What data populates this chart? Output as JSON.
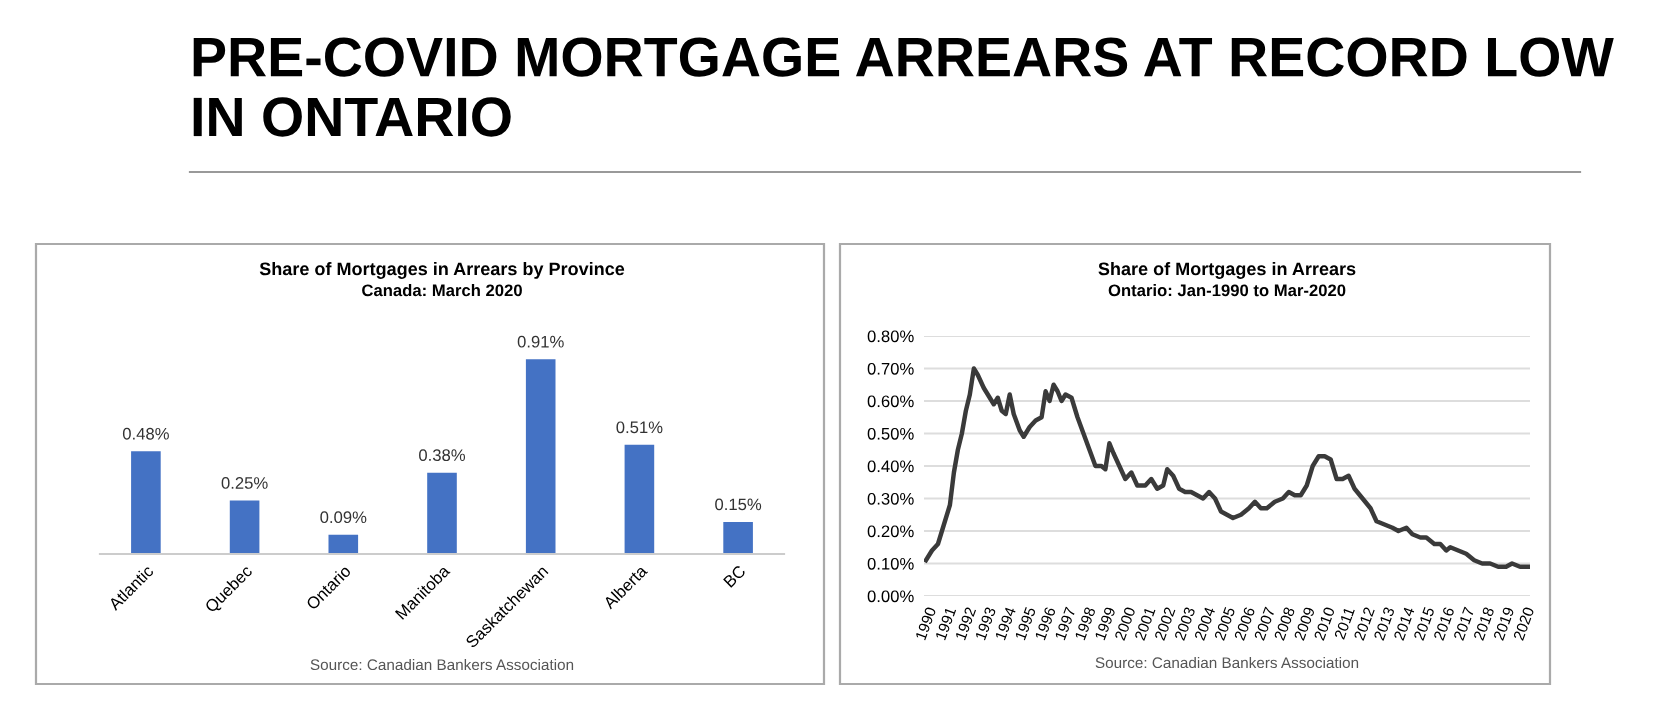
{
  "chart_data": [
    {
      "type": "other",
      "title": "PRE-COVID MORTGAGE ARREARS AT RECORD LOW IN ONTARIO"
    },
    {
      "type": "bar",
      "title": "Share of Mortgages in Arrears by Province",
      "subtitle": "Canada: March 2020",
      "categories": [
        "Atlantic",
        "Quebec",
        "Ontario",
        "Manitoba",
        "Saskatchewan",
        "Alberta",
        "BC"
      ],
      "values": [
        0.48,
        0.25,
        0.09,
        0.38,
        0.91,
        0.51,
        0.15
      ],
      "value_labels": [
        "0.48%",
        "0.25%",
        "0.09%",
        "0.38%",
        "0.91%",
        "0.51%",
        "0.15%"
      ],
      "color": "#4472c4",
      "grid": false,
      "annotations": [
        "Source: Canadian Bankers Association"
      ]
    },
    {
      "type": "line",
      "title": "Share of Mortgages in Arrears",
      "subtitle": "Ontario: Jan-1990 to Mar-2020",
      "x": [
        1990.0,
        1990.3,
        1990.6,
        1990.9,
        1991.2,
        1991.4,
        1991.6,
        1991.8,
        1992.0,
        1992.2,
        1992.4,
        1992.6,
        1992.9,
        1993.2,
        1993.4,
        1993.6,
        1993.8,
        1994.0,
        1994.2,
        1994.4,
        1994.7,
        1994.9,
        1995.2,
        1995.5,
        1995.8,
        1996.0,
        1996.2,
        1996.4,
        1996.6,
        1996.8,
        1997.0,
        1997.3,
        1997.6,
        1997.9,
        1998.2,
        1998.5,
        1998.8,
        1999.0,
        1999.2,
        1999.4,
        1999.7,
        2000.0,
        2000.3,
        2000.6,
        2001.0,
        2001.3,
        2001.6,
        2001.9,
        2002.1,
        2002.4,
        2002.7,
        2003.0,
        2003.3,
        2003.6,
        2003.9,
        2004.2,
        2004.5,
        2004.8,
        2005.1,
        2005.4,
        2005.8,
        2006.2,
        2006.5,
        2006.8,
        2007.1,
        2007.5,
        2007.9,
        2008.2,
        2008.5,
        2008.8,
        2009.1,
        2009.4,
        2009.7,
        2010.0,
        2010.3,
        2010.6,
        2010.9,
        2011.2,
        2011.5,
        2011.9,
        2012.3,
        2012.6,
        2013.0,
        2013.4,
        2013.7,
        2014.1,
        2014.4,
        2014.8,
        2015.1,
        2015.5,
        2015.8,
        2016.1,
        2016.3,
        2016.7,
        2017.1,
        2017.5,
        2017.9,
        2018.3,
        2018.7,
        2019.1,
        2019.4,
        2019.8,
        2020.2
      ],
      "series": [
        {
          "color": "#3a3a3a",
          "values": [
            0.11,
            0.14,
            0.16,
            0.22,
            0.28,
            0.38,
            0.45,
            0.5,
            0.57,
            0.62,
            0.7,
            0.68,
            0.64,
            0.61,
            0.59,
            0.61,
            0.57,
            0.56,
            0.62,
            0.56,
            0.51,
            0.49,
            0.52,
            0.54,
            0.55,
            0.63,
            0.6,
            0.65,
            0.63,
            0.6,
            0.62,
            0.61,
            0.55,
            0.5,
            0.45,
            0.4,
            0.4,
            0.39,
            0.47,
            0.44,
            0.4,
            0.36,
            0.38,
            0.34,
            0.34,
            0.36,
            0.33,
            0.34,
            0.39,
            0.37,
            0.33,
            0.32,
            0.32,
            0.31,
            0.3,
            0.32,
            0.3,
            0.26,
            0.25,
            0.24,
            0.25,
            0.27,
            0.29,
            0.27,
            0.27,
            0.29,
            0.3,
            0.32,
            0.31,
            0.31,
            0.34,
            0.4,
            0.43,
            0.43,
            0.42,
            0.36,
            0.36,
            0.37,
            0.33,
            0.3,
            0.27,
            0.23,
            0.22,
            0.21,
            0.2,
            0.21,
            0.19,
            0.18,
            0.18,
            0.16,
            0.16,
            0.14,
            0.15,
            0.14,
            0.13,
            0.11,
            0.1,
            0.1,
            0.09,
            0.09,
            0.1,
            0.09,
            0.09
          ]
        }
      ],
      "xlim": [
        1989.9,
        2020.3
      ],
      "xticks": [
        1990,
        1991,
        1992,
        1993,
        1994,
        1995,
        1996,
        1997,
        1998,
        1999,
        2000,
        2001,
        2002,
        2003,
        2004,
        2005,
        2006,
        2007,
        2008,
        2009,
        2010,
        2011,
        2012,
        2013,
        2014,
        2015,
        2016,
        2017,
        2018,
        2019,
        2020
      ],
      "ylim": [
        0,
        0.8
      ],
      "yticks": [
        {
          "value": 0,
          "label": "0.00%"
        },
        {
          "value": 0.1,
          "label": "0.10%"
        },
        {
          "value": 0.2,
          "label": "0.20%"
        },
        {
          "value": 0.3,
          "label": "0.30%"
        },
        {
          "value": 0.4,
          "label": "0.40%"
        },
        {
          "value": 0.5,
          "label": "0.50%"
        },
        {
          "value": 0.6,
          "label": "0.60%"
        },
        {
          "value": 0.7,
          "label": "0.70%"
        },
        {
          "value": 0.8,
          "label": "0.80%"
        }
      ],
      "grid": "y",
      "marker": "none",
      "line_style": "solid",
      "annotations": [
        "Source: Canadian Bankers Association"
      ]
    }
  ]
}
